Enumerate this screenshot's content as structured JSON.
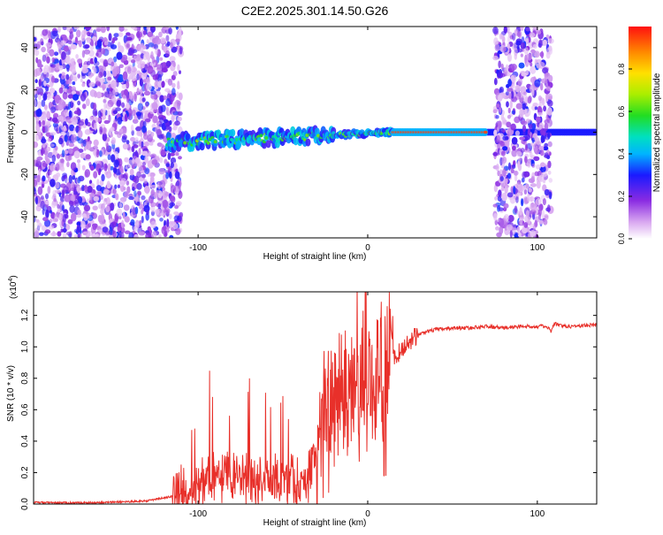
{
  "figure": {
    "title": "C2E2.2025.301.14.50.G26"
  },
  "chart_data": [
    {
      "type": "heatmap",
      "title": "C2E2.2025.301.14.50.G26",
      "xlabel": "Height of straight line (km)",
      "ylabel": "Frequency (Hz)",
      "xlim": [
        -197,
        135
      ],
      "ylim": [
        -50,
        50
      ],
      "x_ticks": [
        -100,
        0,
        100
      ],
      "y_ticks": [
        -40,
        -20,
        0,
        20,
        40
      ],
      "colorbar": {
        "label": "Normalized spectral amplitude",
        "range": [
          0,
          1
        ],
        "ticks": [
          0.0,
          0.2,
          0.4,
          0.6,
          0.8
        ]
      },
      "features": [
        {
          "name": "noise-region-left",
          "x_range": [
            -197,
            -110
          ],
          "freq_range": [
            -50,
            50
          ]
        },
        {
          "name": "signal-band",
          "x_range": [
            -118,
            135
          ],
          "center_freq_start": -5,
          "center_freq_end": 0
        },
        {
          "name": "strong-carrier",
          "x_range": [
            15,
            70
          ],
          "freq": 0
        },
        {
          "name": "noise-region-right",
          "x_range": [
            75,
            108
          ],
          "freq_range": [
            -50,
            50
          ]
        }
      ]
    },
    {
      "type": "line",
      "xlabel": "Height of straight line (km)",
      "ylabel": "SNR (10 * v/v)",
      "y_scale_label": "(x10",
      "y_scale_exp": "4",
      "xlim": [
        -197,
        135
      ],
      "ylim": [
        0,
        1.35
      ],
      "x_ticks": [
        -100,
        0,
        100
      ],
      "y_ticks": [
        0.0,
        0.2,
        0.4,
        0.6,
        0.8,
        1.0,
        1.2
      ],
      "series": [
        {
          "name": "SNR",
          "color": "#e8302a",
          "x": [
            -197,
            -170,
            -150,
            -130,
            -115,
            -105,
            -95,
            -85,
            -75,
            -65,
            -55,
            -45,
            -40,
            -35,
            -30,
            -25,
            -20,
            -15,
            -10,
            -5,
            0,
            5,
            10,
            15,
            20,
            25,
            30,
            40,
            50,
            60,
            70,
            80,
            90,
            100,
            105,
            108,
            110,
            115,
            120,
            135
          ],
          "values": [
            0.01,
            0.008,
            0.012,
            0.02,
            0.05,
            0.09,
            0.14,
            0.2,
            0.16,
            0.17,
            0.15,
            0.14,
            0.12,
            0.2,
            0.32,
            0.45,
            0.6,
            0.7,
            0.78,
            0.72,
            0.8,
            0.82,
            0.86,
            0.92,
            0.98,
            1.04,
            1.08,
            1.11,
            1.12,
            1.12,
            1.13,
            1.12,
            1.13,
            1.13,
            1.13,
            1.1,
            1.15,
            1.13,
            1.13,
            1.14
          ]
        }
      ]
    }
  ],
  "colors": {
    "series": "#e8302a",
    "axis": "#000000"
  }
}
